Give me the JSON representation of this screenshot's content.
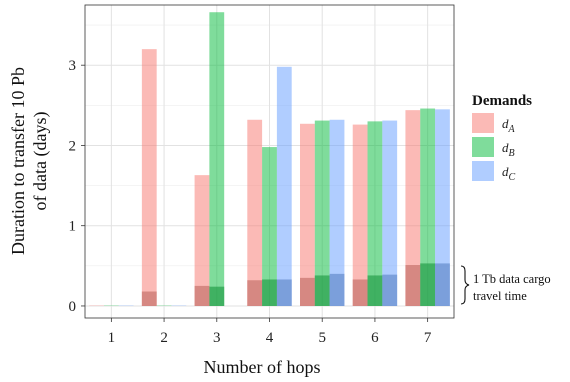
{
  "chart_data": {
    "type": "bar",
    "xlabel": "Number of hops",
    "ylabel_lines": [
      "Duration to transfer 10 Pb",
      "of data (days)"
    ],
    "categories": [
      "1",
      "2",
      "3",
      "4",
      "5",
      "6",
      "7"
    ],
    "ylim": [
      -0.15,
      3.75
    ],
    "yticks": [
      0,
      1,
      2,
      3
    ],
    "grid": true,
    "series": [
      {
        "name": "d",
        "sub": "A",
        "color": "#F8766D",
        "values": [
          0.005,
          3.2,
          1.63,
          2.32,
          2.27,
          2.26,
          2.44
        ],
        "overlay": [
          0.0,
          0.18,
          0.25,
          0.32,
          0.35,
          0.33,
          0.51
        ]
      },
      {
        "name": "d",
        "sub": "B",
        "color": "#00BA38",
        "values": [
          0.005,
          0.005,
          3.66,
          1.98,
          2.31,
          2.3,
          2.46
        ],
        "overlay": [
          0.0,
          0.0,
          0.24,
          0.33,
          0.38,
          0.38,
          0.53
        ]
      },
      {
        "name": "d",
        "sub": "C",
        "color": "#619CFF",
        "values": [
          0.005,
          0.005,
          0.0,
          2.98,
          2.32,
          2.31,
          2.45
        ],
        "overlay": [
          0.0,
          0.0,
          0.0,
          0.33,
          0.4,
          0.39,
          0.53
        ]
      }
    ],
    "legend": {
      "title": "Demands",
      "position": "right"
    },
    "annotation": {
      "lines": [
        "1 Tb data cargo",
        "travel time"
      ]
    }
  }
}
